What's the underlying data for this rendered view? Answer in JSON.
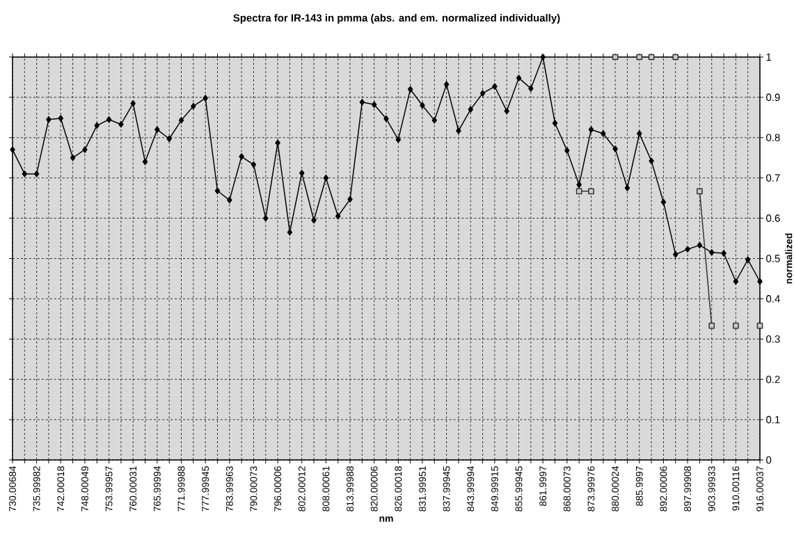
{
  "chart_data": {
    "type": "line",
    "title": "Spectra for IR-143 in pmma (abs. and em. normalized individually)",
    "xlabel": "nm",
    "ylabel": "normalized",
    "categories": [
      "730.00684",
      null,
      "735.99982",
      null,
      "742.00018",
      null,
      "748.00049",
      null,
      "753.99957",
      null,
      "760.00031",
      null,
      "765.99994",
      null,
      "771.99988",
      null,
      "777.99945",
      null,
      "783.99963",
      null,
      "790.00073",
      null,
      "796.00006",
      null,
      "802.00012",
      null,
      "808.00061",
      null,
      "813.99988",
      null,
      "820.00006",
      null,
      "826.00018",
      null,
      "831.99951",
      null,
      "837.99945",
      null,
      "843.99994",
      null,
      "849.99915",
      null,
      "855.99945",
      null,
      "861.9997",
      null,
      "868.00073",
      null,
      "873.99976",
      null,
      "880.00024",
      null,
      "885.9997",
      null,
      "892.00006",
      null,
      "897.99908",
      null,
      "903.99933",
      null,
      "910.00116",
      null,
      "916.00037"
    ],
    "series": [
      {
        "color": "#000000",
        "marker": "diamond",
        "values": [
          0.77,
          0.71,
          0.71,
          0.845,
          0.848,
          0.75,
          0.77,
          0.83,
          0.845,
          0.833,
          0.885,
          0.74,
          0.82,
          0.797,
          0.843,
          0.878,
          0.898,
          0.668,
          0.645,
          0.753,
          0.733,
          0.6,
          0.787,
          0.565,
          0.712,
          0.595,
          0.7,
          0.605,
          0.647,
          0.888,
          0.882,
          0.847,
          0.795,
          0.92,
          0.88,
          0.843,
          0.932,
          0.817,
          0.87,
          0.91,
          0.927,
          0.866,
          0.948,
          0.922,
          1.0,
          0.836,
          0.768,
          0.683,
          0.82,
          0.81,
          0.772,
          0.675,
          0.81,
          0.742,
          0.64,
          0.51,
          0.523,
          0.533,
          0.515,
          0.513,
          0.443,
          0.497,
          0.443
        ]
      },
      {
        "color": "#333333",
        "marker": "square",
        "values": [
          null,
          null,
          null,
          null,
          null,
          null,
          null,
          null,
          null,
          null,
          null,
          null,
          null,
          null,
          null,
          null,
          null,
          null,
          null,
          null,
          null,
          null,
          null,
          null,
          null,
          null,
          null,
          null,
          null,
          null,
          null,
          null,
          null,
          null,
          null,
          null,
          null,
          null,
          null,
          null,
          null,
          null,
          null,
          null,
          null,
          null,
          null,
          0.667,
          0.667,
          null,
          1,
          null,
          1,
          1,
          null,
          1,
          null,
          0.667,
          0.333,
          null,
          0.333,
          null,
          0.333
        ]
      }
    ],
    "ylim": [
      0,
      1
    ],
    "yticks": [
      0,
      0.1,
      0.2,
      0.3,
      0.4,
      0.5,
      0.6,
      0.7,
      0.8,
      0.9,
      1
    ],
    "grid": true,
    "line_style": "solid"
  }
}
